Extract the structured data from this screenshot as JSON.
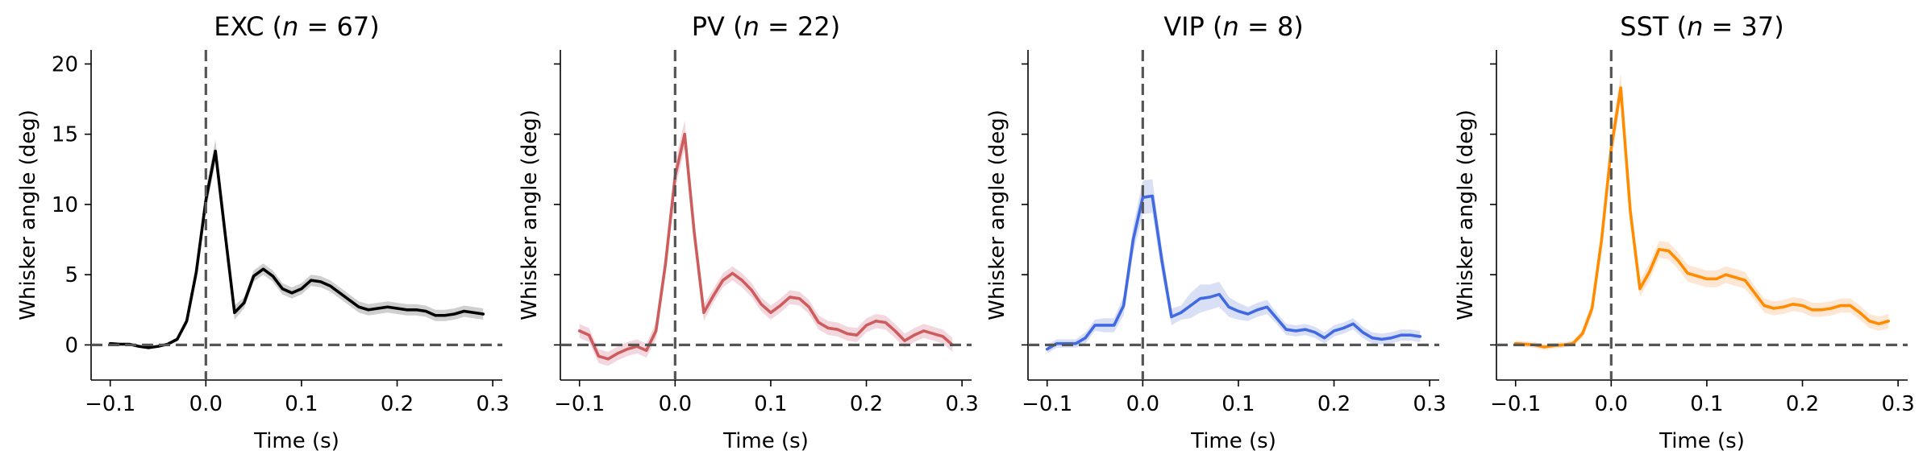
{
  "chart_data": [
    {
      "type": "line",
      "title_main": "EXC (",
      "title_n_symbol": "n",
      "title_n_value": " = 67)",
      "xlabel": "Time (s)",
      "ylabel": "Whisker angle (deg)",
      "xlim": [
        -0.12,
        0.31
      ],
      "ylim": [
        -2.5,
        21
      ],
      "xticks": [
        -0.1,
        0.0,
        0.1,
        0.2,
        0.3
      ],
      "xtick_labels": [
        "−0.1",
        "0.0",
        "0.1",
        "0.2",
        "0.3"
      ],
      "yticks": [
        0,
        5,
        10,
        15,
        20
      ],
      "ytick_labels": [
        "0",
        "5",
        "10",
        "15",
        "20"
      ],
      "color": "#000000",
      "band_color": "#a8a8a8",
      "x": [
        -0.1,
        -0.09,
        -0.08,
        -0.07,
        -0.06,
        -0.05,
        -0.04,
        -0.03,
        -0.02,
        -0.01,
        0.0,
        0.01,
        0.02,
        0.03,
        0.04,
        0.05,
        0.06,
        0.07,
        0.08,
        0.09,
        0.1,
        0.11,
        0.12,
        0.13,
        0.14,
        0.15,
        0.16,
        0.17,
        0.18,
        0.19,
        0.2,
        0.21,
        0.22,
        0.23,
        0.24,
        0.25,
        0.26,
        0.27,
        0.28,
        0.29
      ],
      "y": [
        0.1,
        0.05,
        0.05,
        -0.1,
        -0.2,
        -0.1,
        0.05,
        0.4,
        1.7,
        5.2,
        10.3,
        13.8,
        8.0,
        2.3,
        3.0,
        4.9,
        5.4,
        4.9,
        4.0,
        3.7,
        4.0,
        4.6,
        4.5,
        4.2,
        3.7,
        3.2,
        2.7,
        2.5,
        2.6,
        2.7,
        2.6,
        2.5,
        2.5,
        2.4,
        2.1,
        2.1,
        2.2,
        2.4,
        2.3,
        2.2
      ],
      "err": [
        0.1,
        0.1,
        0.1,
        0.1,
        0.1,
        0.1,
        0.1,
        0.15,
        0.3,
        0.6,
        0.8,
        0.8,
        0.6,
        0.5,
        0.4,
        0.4,
        0.4,
        0.4,
        0.4,
        0.4,
        0.4,
        0.4,
        0.4,
        0.4,
        0.4,
        0.4,
        0.4,
        0.4,
        0.4,
        0.4,
        0.4,
        0.4,
        0.4,
        0.4,
        0.4,
        0.4,
        0.4,
        0.4,
        0.4,
        0.4
      ],
      "reference_lines": {
        "vertical_x": 0.0,
        "horizontal_y": 0.0
      }
    },
    {
      "type": "line",
      "title_main": "PV (",
      "title_n_symbol": "n",
      "title_n_value": " = 22)",
      "xlabel": "Time (s)",
      "ylabel": "Whisker angle (deg)",
      "xlim": [
        -0.12,
        0.31
      ],
      "ylim": [
        -2.5,
        21
      ],
      "xticks": [
        -0.1,
        0.0,
        0.1,
        0.2,
        0.3
      ],
      "xtick_labels": [
        "−0.1",
        "0.0",
        "0.1",
        "0.2",
        "0.3"
      ],
      "yticks": [
        0,
        5,
        10,
        15,
        20
      ],
      "ytick_labels": [
        "",
        "",
        "",
        "",
        ""
      ],
      "color": "#cd5c5c",
      "band_color": "#e9b7c4",
      "x": [
        -0.1,
        -0.09,
        -0.08,
        -0.07,
        -0.06,
        -0.05,
        -0.04,
        -0.03,
        -0.02,
        -0.01,
        0.0,
        0.01,
        0.02,
        0.03,
        0.04,
        0.05,
        0.06,
        0.07,
        0.08,
        0.09,
        0.1,
        0.11,
        0.12,
        0.13,
        0.14,
        0.15,
        0.16,
        0.17,
        0.18,
        0.19,
        0.2,
        0.21,
        0.22,
        0.23,
        0.24,
        0.25,
        0.26,
        0.27,
        0.28,
        0.29
      ],
      "y": [
        1.0,
        0.7,
        -0.8,
        -1.0,
        -0.6,
        -0.3,
        -0.1,
        -0.4,
        1.0,
        5.8,
        12.0,
        15.0,
        8.0,
        2.3,
        3.5,
        4.6,
        5.1,
        4.6,
        3.9,
        2.9,
        2.3,
        2.8,
        3.4,
        3.3,
        2.7,
        1.6,
        1.2,
        1.1,
        0.8,
        0.7,
        1.4,
        1.7,
        1.6,
        1.0,
        0.3,
        0.7,
        1.0,
        0.8,
        0.6,
        0.0
      ],
      "err": [
        0.5,
        0.5,
        0.5,
        0.5,
        0.5,
        0.5,
        0.5,
        0.5,
        0.6,
        0.8,
        1.0,
        1.0,
        0.8,
        0.6,
        0.5,
        0.5,
        0.5,
        0.5,
        0.5,
        0.5,
        0.5,
        0.5,
        0.5,
        0.5,
        0.5,
        0.5,
        0.5,
        0.5,
        0.5,
        0.5,
        0.5,
        0.5,
        0.5,
        0.5,
        0.5,
        0.5,
        0.5,
        0.5,
        0.5,
        0.5
      ],
      "reference_lines": {
        "vertical_x": 0.0,
        "horizontal_y": 0.0
      }
    },
    {
      "type": "line",
      "title_main": "VIP (",
      "title_n_symbol": "n",
      "title_n_value": " = 8)",
      "xlabel": "Time (s)",
      "ylabel": "Whisker angle (deg)",
      "xlim": [
        -0.12,
        0.31
      ],
      "ylim": [
        -2.5,
        21
      ],
      "xticks": [
        -0.1,
        0.0,
        0.1,
        0.2,
        0.3
      ],
      "xtick_labels": [
        "−0.1",
        "0.0",
        "0.1",
        "0.2",
        "0.3"
      ],
      "yticks": [
        0,
        5,
        10,
        15,
        20
      ],
      "ytick_labels": [
        "",
        "",
        "",
        "",
        ""
      ],
      "color": "#4169e1",
      "band_color": "#b9c7ee",
      "x": [
        -0.1,
        -0.09,
        -0.08,
        -0.07,
        -0.06,
        -0.05,
        -0.04,
        -0.03,
        -0.02,
        -0.01,
        0.0,
        0.01,
        0.02,
        0.03,
        0.04,
        0.05,
        0.06,
        0.07,
        0.08,
        0.09,
        0.1,
        0.11,
        0.12,
        0.13,
        0.14,
        0.15,
        0.16,
        0.17,
        0.18,
        0.19,
        0.2,
        0.21,
        0.22,
        0.23,
        0.24,
        0.25,
        0.26,
        0.27,
        0.28,
        0.29
      ],
      "y": [
        -0.3,
        0.1,
        0.1,
        0.1,
        0.5,
        1.4,
        1.4,
        1.4,
        2.8,
        7.5,
        10.5,
        10.6,
        6.0,
        2.0,
        2.3,
        2.8,
        3.3,
        3.4,
        3.6,
        2.7,
        2.4,
        2.2,
        2.5,
        2.7,
        1.9,
        1.1,
        1.0,
        1.1,
        0.9,
        0.5,
        1.0,
        1.2,
        1.5,
        0.9,
        0.5,
        0.4,
        0.5,
        0.7,
        0.7,
        0.6
      ],
      "err": [
        0.3,
        0.3,
        0.3,
        0.3,
        0.4,
        0.4,
        0.5,
        0.5,
        0.7,
        1.0,
        1.2,
        1.2,
        0.9,
        0.6,
        0.5,
        0.9,
        1.0,
        0.9,
        0.9,
        0.7,
        0.6,
        0.5,
        0.5,
        0.5,
        0.4,
        0.4,
        0.4,
        0.4,
        0.4,
        0.4,
        0.4,
        0.4,
        0.4,
        0.4,
        0.4,
        0.4,
        0.4,
        0.4,
        0.4,
        0.4
      ],
      "reference_lines": {
        "vertical_x": 0.0,
        "horizontal_y": 0.0
      }
    },
    {
      "type": "line",
      "title_main": "SST (",
      "title_n_symbol": "n",
      "title_n_value": " = 37)",
      "xlabel": "Time (s)",
      "ylabel": "Whisker angle (deg)",
      "xlim": [
        -0.12,
        0.31
      ],
      "ylim": [
        -2.5,
        21
      ],
      "xticks": [
        -0.1,
        0.0,
        0.1,
        0.2,
        0.3
      ],
      "xtick_labels": [
        "−0.1",
        "0.0",
        "0.1",
        "0.2",
        "0.3"
      ],
      "yticks": [
        0,
        5,
        10,
        15,
        20
      ],
      "ytick_labels": [
        "",
        "",
        "",
        "",
        ""
      ],
      "color": "#ff8c00",
      "band_color": "#fdd2b0",
      "x": [
        -0.1,
        -0.09,
        -0.08,
        -0.07,
        -0.06,
        -0.05,
        -0.04,
        -0.03,
        -0.02,
        -0.01,
        0.0,
        0.01,
        0.02,
        0.03,
        0.04,
        0.05,
        0.06,
        0.07,
        0.08,
        0.09,
        0.1,
        0.11,
        0.12,
        0.13,
        0.14,
        0.15,
        0.16,
        0.17,
        0.18,
        0.19,
        0.2,
        0.21,
        0.22,
        0.23,
        0.24,
        0.25,
        0.26,
        0.27,
        0.28,
        0.29
      ],
      "y": [
        0.1,
        0.05,
        0.0,
        -0.15,
        -0.05,
        0.0,
        0.1,
        0.8,
        2.6,
        7.5,
        14.0,
        18.3,
        9.5,
        4.0,
        5.2,
        6.8,
        6.7,
        6.0,
        5.1,
        4.9,
        4.7,
        4.7,
        5.0,
        4.8,
        4.6,
        3.7,
        2.8,
        2.6,
        2.7,
        2.9,
        2.8,
        2.5,
        2.5,
        2.6,
        2.8,
        2.8,
        2.3,
        1.7,
        1.5,
        1.7
      ],
      "err": [
        0.2,
        0.2,
        0.2,
        0.2,
        0.2,
        0.2,
        0.2,
        0.3,
        0.5,
        0.8,
        1.0,
        1.0,
        0.8,
        0.6,
        0.6,
        0.6,
        0.6,
        0.6,
        0.6,
        0.6,
        0.6,
        0.6,
        0.6,
        0.6,
        0.6,
        0.5,
        0.5,
        0.5,
        0.5,
        0.5,
        0.5,
        0.5,
        0.5,
        0.5,
        0.5,
        0.5,
        0.5,
        0.5,
        0.5,
        0.5
      ],
      "reference_lines": {
        "vertical_x": 0.0,
        "horizontal_y": 0.0
      }
    }
  ]
}
